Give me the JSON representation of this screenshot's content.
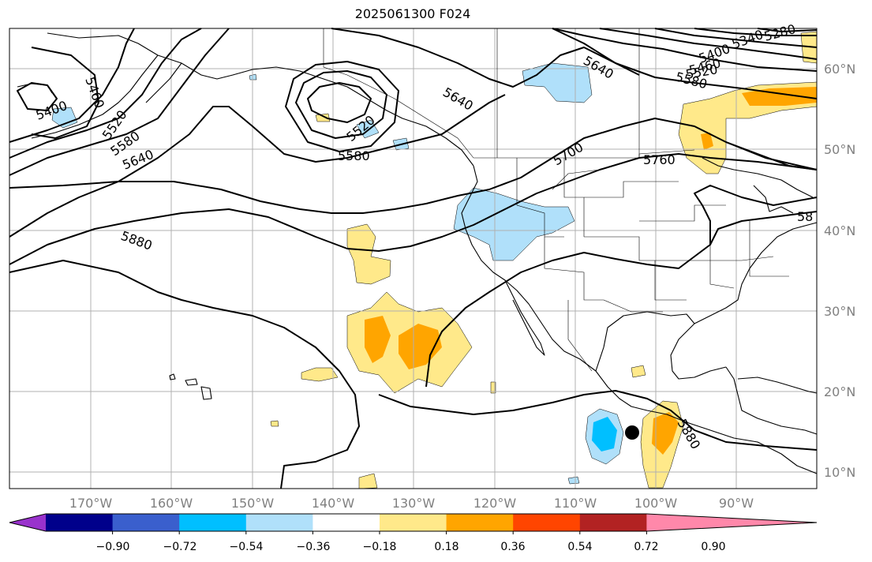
{
  "title": "2025061300 F024",
  "map": {
    "longitude_labels": [
      "170°W",
      "160°W",
      "150°W",
      "140°W",
      "130°W",
      "120°W",
      "110°W",
      "100°W",
      "90°W"
    ],
    "latitude_labels": [
      "60°N",
      "50°N",
      "40°N",
      "30°N",
      "20°N",
      "10°N"
    ],
    "height_contour_labels": [
      "5400",
      "5460",
      "5520",
      "5580",
      "5640",
      "5520",
      "5580",
      "5640",
      "5640",
      "5700",
      "5760",
      "5880",
      "5880",
      "5340",
      "5280",
      "5400",
      "5460",
      "5520",
      "5580",
      "58"
    ],
    "marker": "black-dot"
  },
  "colorbar": {
    "ticks": [
      "−0.90",
      "−0.72",
      "−0.54",
      "−0.36",
      "−0.18",
      "0.18",
      "0.36",
      "0.54",
      "0.72",
      "0.90"
    ],
    "colors": [
      "#9932cc",
      "#00008b",
      "#3a5fcd",
      "#00bfff",
      "#b0e0fa",
      "#ffffff",
      "#ffe98a",
      "#ffa500",
      "#ff4500",
      "#b22222",
      "#ff88aa"
    ]
  }
}
